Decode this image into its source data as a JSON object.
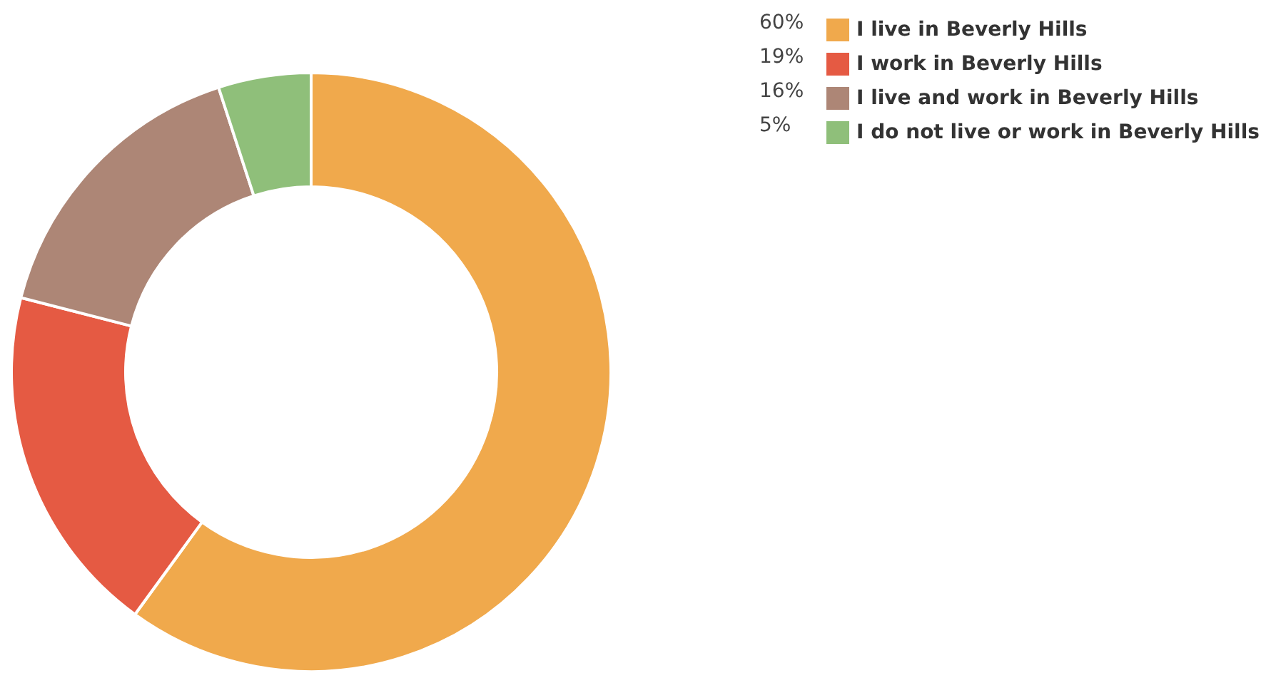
{
  "chart_data": {
    "type": "donut",
    "categories": [
      "I live in Beverly Hills",
      "I work in Beverly Hills",
      "I live and work in Beverly Hills",
      "I do not live or work in Beverly Hills"
    ],
    "values": [
      60,
      19,
      16,
      5
    ],
    "value_labels": [
      "60%",
      "19%",
      "16%",
      "5%"
    ],
    "colors": [
      "#f0a94c",
      "#e55a43",
      "#ad8676",
      "#8fbf7a"
    ],
    "legend": "top right"
  }
}
